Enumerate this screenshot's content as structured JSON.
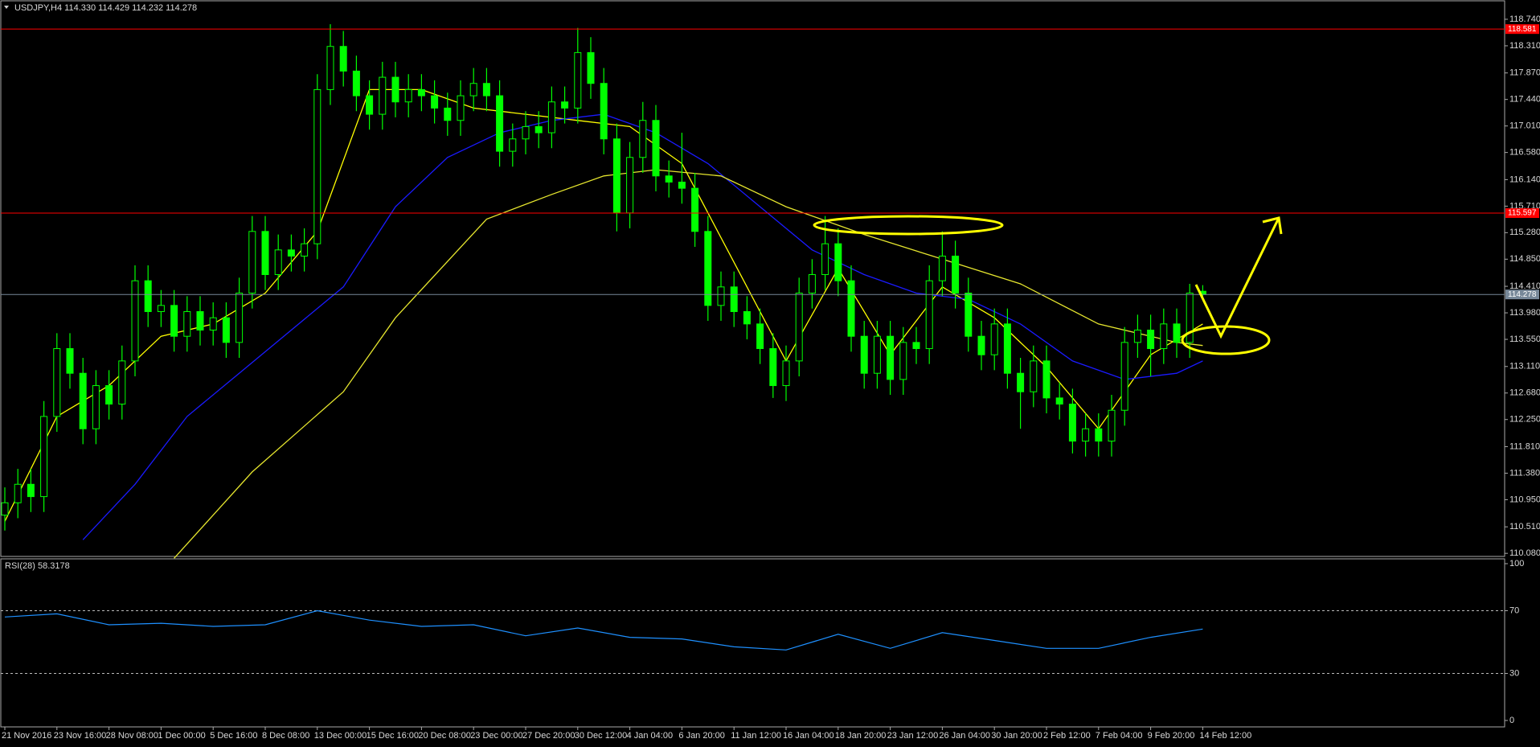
{
  "chart_data": [
    {
      "type": "candlestick",
      "title": "USDJPY,H4  114.330 114.429 114.232 114.278",
      "categories": [
        "21 Nov 2016",
        null,
        null,
        null,
        "23 Nov 16:00",
        null,
        null,
        null,
        "28 Nov 08:00",
        null,
        null,
        null,
        "1 Dec 00:00",
        null,
        null,
        null,
        "5 Dec 16:00",
        null,
        null,
        null,
        "8 Dec 08:00",
        null,
        null,
        null,
        "13 Dec 00:00",
        null,
        null,
        null,
        "15 Dec 16:00",
        null,
        null,
        null,
        "20 Dec 08:00",
        null,
        null,
        null,
        "23 Dec 00:00",
        null,
        null,
        null,
        "27 Dec 20:00",
        null,
        null,
        null,
        "30 Dec 12:00",
        null,
        null,
        null,
        "4 Jan 04:00",
        null,
        null,
        null,
        "6 Jan 20:00",
        null,
        null,
        null,
        "11 Jan 12:00",
        null,
        null,
        null,
        "16 Jan 04:00",
        null,
        null,
        null,
        "18 Jan 20:00",
        null,
        null,
        null,
        "23 Jan 12:00",
        null,
        null,
        null,
        "26 Jan 04:00",
        null,
        null,
        null,
        "30 Jan 20:00",
        null,
        null,
        null,
        "2 Feb 12:00",
        null,
        null,
        null,
        "7 Feb 04:00",
        null,
        null,
        null,
        "9 Feb 20:00",
        null,
        null,
        null,
        "14 Feb 12:00"
      ],
      "open": [
        110.7,
        110.9,
        111.2,
        111.0,
        112.3,
        113.4,
        113.0,
        112.1,
        112.8,
        112.5,
        113.2,
        114.5,
        114.0,
        114.1,
        113.6,
        114.0,
        113.7,
        113.9,
        113.5,
        114.3,
        115.3,
        114.6,
        115.0,
        114.9,
        115.1,
        117.6,
        118.3,
        117.9,
        117.5,
        117.2,
        117.8,
        117.4,
        117.6,
        117.5,
        117.3,
        117.1,
        117.5,
        117.7,
        117.5,
        116.6,
        116.8,
        117.0,
        116.9,
        117.4,
        117.3,
        118.2,
        117.7,
        116.8,
        115.6,
        116.5,
        117.1,
        116.2,
        116.1,
        116.0,
        115.3,
        114.1,
        114.4,
        114.0,
        113.8,
        113.4,
        112.8,
        113.2,
        114.3,
        114.6,
        115.1,
        114.5,
        113.6,
        113.0,
        113.6,
        112.9,
        113.5,
        113.4,
        114.5,
        114.9,
        114.3,
        113.6,
        113.3,
        113.8,
        113.0,
        112.7,
        113.2,
        112.6,
        112.5,
        111.9,
        112.1,
        111.9,
        112.4,
        113.5,
        113.7,
        113.4,
        113.8,
        113.5,
        114.33
      ],
      "high": [
        111.15,
        111.45,
        111.45,
        112.55,
        113.65,
        113.65,
        113.25,
        113.05,
        113.05,
        113.45,
        114.75,
        114.75,
        114.35,
        114.35,
        114.25,
        114.25,
        114.15,
        114.15,
        114.55,
        115.55,
        115.55,
        115.25,
        115.25,
        115.35,
        117.85,
        118.66,
        118.55,
        118.15,
        117.75,
        118.05,
        118.05,
        117.85,
        117.85,
        117.75,
        117.55,
        117.75,
        117.95,
        117.95,
        117.75,
        117.05,
        117.25,
        117.25,
        117.65,
        117.65,
        118.6,
        118.45,
        117.95,
        117.05,
        116.75,
        117.4,
        117.35,
        116.45,
        116.9,
        116.25,
        115.55,
        114.65,
        114.65,
        114.25,
        114.05,
        113.65,
        113.45,
        114.55,
        114.85,
        115.55,
        115.35,
        114.75,
        113.85,
        113.85,
        113.85,
        113.75,
        113.75,
        114.75,
        115.3,
        115.15,
        114.55,
        113.85,
        114.05,
        114.05,
        113.25,
        113.45,
        113.45,
        112.85,
        112.75,
        112.35,
        112.35,
        112.65,
        113.75,
        113.95,
        113.95,
        114.05,
        114.05,
        114.45,
        114.429
      ],
      "low": [
        110.45,
        110.65,
        110.75,
        110.75,
        112.05,
        112.75,
        111.85,
        111.85,
        112.25,
        112.25,
        112.95,
        113.75,
        113.75,
        113.35,
        113.35,
        113.45,
        113.45,
        113.25,
        113.25,
        114.05,
        114.35,
        114.35,
        114.65,
        114.65,
        114.85,
        117.35,
        117.65,
        117.25,
        116.95,
        116.95,
        117.15,
        117.15,
        117.25,
        117.05,
        116.85,
        116.85,
        117.25,
        117.25,
        116.35,
        116.35,
        116.55,
        116.65,
        116.65,
        117.05,
        117.05,
        117.45,
        116.55,
        115.3,
        115.35,
        116.25,
        115.95,
        115.85,
        115.75,
        115.05,
        113.85,
        113.85,
        113.75,
        113.55,
        113.15,
        112.6,
        112.55,
        112.95,
        114.05,
        114.35,
        114.25,
        113.35,
        112.75,
        112.75,
        112.65,
        112.65,
        113.15,
        113.15,
        114.25,
        114.05,
        113.35,
        113.05,
        113.05,
        112.75,
        112.1,
        112.45,
        112.35,
        112.25,
        111.7,
        111.65,
        111.65,
        111.65,
        112.15,
        113.25,
        112.95,
        113.15,
        113.25,
        113.25,
        114.232
      ],
      "close": [
        110.9,
        111.2,
        111.0,
        112.3,
        113.4,
        113.0,
        112.1,
        112.8,
        112.5,
        113.2,
        114.5,
        114.0,
        114.1,
        113.6,
        114.0,
        113.7,
        113.9,
        113.5,
        114.3,
        115.3,
        114.6,
        115.0,
        114.9,
        115.1,
        117.6,
        118.3,
        117.9,
        117.5,
        117.2,
        117.8,
        117.4,
        117.6,
        117.5,
        117.3,
        117.1,
        117.5,
        117.7,
        117.5,
        116.6,
        116.8,
        117.0,
        116.9,
        117.4,
        117.3,
        118.2,
        117.7,
        116.8,
        115.6,
        116.5,
        117.1,
        116.2,
        116.1,
        116.0,
        115.3,
        114.1,
        114.4,
        114.0,
        113.8,
        113.4,
        112.8,
        113.2,
        114.3,
        114.6,
        115.1,
        114.5,
        113.6,
        113.0,
        113.6,
        112.9,
        113.5,
        113.4,
        114.5,
        114.9,
        114.3,
        113.6,
        113.3,
        113.8,
        113.0,
        112.7,
        113.2,
        112.6,
        112.5,
        111.9,
        112.1,
        111.9,
        112.4,
        113.5,
        113.7,
        113.4,
        113.8,
        113.5,
        114.3,
        114.278
      ],
      "color": "#00ff00",
      "series": [
        {
          "color": "#ffff00",
          "x": [
            0,
            4,
            8,
            12,
            16,
            20,
            24,
            28,
            32,
            36,
            40,
            44,
            48,
            52,
            56,
            60,
            64,
            68,
            72,
            76,
            80,
            84,
            88,
            92
          ],
          "values": [
            110.6,
            112.3,
            112.8,
            113.6,
            113.8,
            114.3,
            115.3,
            117.6,
            117.6,
            117.3,
            117.2,
            117.1,
            117.0,
            116.4,
            114.8,
            113.2,
            114.7,
            113.3,
            114.4,
            113.9,
            113.1,
            112.1,
            113.3,
            113.8
          ]
        },
        {
          "color": "#1a1aff",
          "x": [
            6,
            10,
            14,
            18,
            22,
            26,
            30,
            34,
            38,
            42,
            46,
            50,
            54,
            58,
            62,
            66,
            70,
            74,
            78,
            82,
            86,
            90,
            92
          ],
          "values": [
            110.3,
            111.2,
            112.3,
            113.0,
            113.7,
            114.4,
            115.7,
            116.5,
            116.9,
            117.1,
            117.2,
            116.9,
            116.4,
            115.7,
            115.0,
            114.6,
            114.3,
            114.2,
            113.8,
            113.2,
            112.9,
            113.0,
            113.2
          ]
        },
        {
          "color": "#e6e62e",
          "x": [
            13,
            19,
            26,
            30,
            37,
            42,
            46,
            50,
            55,
            60,
            66,
            72,
            78,
            84,
            90,
            92
          ],
          "values": [
            110.0,
            111.4,
            112.7,
            113.9,
            115.5,
            115.9,
            116.2,
            116.3,
            116.2,
            115.7,
            115.25,
            114.85,
            114.45,
            113.8,
            113.5,
            113.45
          ]
        }
      ],
      "levels": [
        {
          "value": 118.581,
          "color": "#ff0000"
        },
        {
          "value": 115.597,
          "color": "#ff0000"
        },
        {
          "value": 114.278,
          "color": "#778899"
        }
      ],
      "ylim": [
        110.03,
        118.87
      ],
      "yticks": [
        {
          "value": 118.74,
          "label": "118.740"
        },
        {
          "value": 118.31,
          "label": "118.310"
        },
        {
          "value": 117.87,
          "label": "117.870"
        },
        {
          "value": 117.44,
          "label": "117.440"
        },
        {
          "value": 117.01,
          "label": "117.010"
        },
        {
          "value": 116.58,
          "label": "116.580"
        },
        {
          "value": 116.14,
          "label": "116.140"
        },
        {
          "value": 115.71,
          "label": "115.710"
        },
        {
          "value": 115.28,
          "label": "115.280"
        },
        {
          "value": 114.85,
          "label": "114.850"
        },
        {
          "value": 114.41,
          "label": "114.410"
        },
        {
          "value": 113.98,
          "label": "113.980"
        },
        {
          "value": 113.55,
          "label": "113.550"
        },
        {
          "value": 113.11,
          "label": "113.110"
        },
        {
          "value": 112.68,
          "label": "112.680"
        },
        {
          "value": 112.25,
          "label": "112.250"
        },
        {
          "value": 111.81,
          "label": "111.810"
        },
        {
          "value": 111.38,
          "label": "111.380"
        },
        {
          "value": 110.95,
          "label": "110.950"
        },
        {
          "value": 110.51,
          "label": "110.510"
        },
        {
          "value": 110.08,
          "label": "110.080"
        }
      ]
    },
    {
      "type": "line",
      "title": "RSI(28) 58.3178",
      "x": [
        0,
        4,
        8,
        12,
        16,
        20,
        24,
        28,
        32,
        36,
        40,
        44,
        48,
        52,
        56,
        60,
        64,
        68,
        72,
        76,
        80,
        84,
        88,
        92
      ],
      "values": [
        66,
        68,
        61,
        62,
        60,
        61,
        70,
        64,
        60,
        61,
        54,
        59,
        53,
        52,
        47,
        45,
        55,
        46,
        56,
        51,
        46,
        46,
        53,
        58.3178
      ],
      "color": "#1e90ff",
      "ylim": [
        0,
        100
      ],
      "yticks": [
        100,
        70,
        30,
        0
      ],
      "levels": [
        70,
        30
      ]
    }
  ]
}
